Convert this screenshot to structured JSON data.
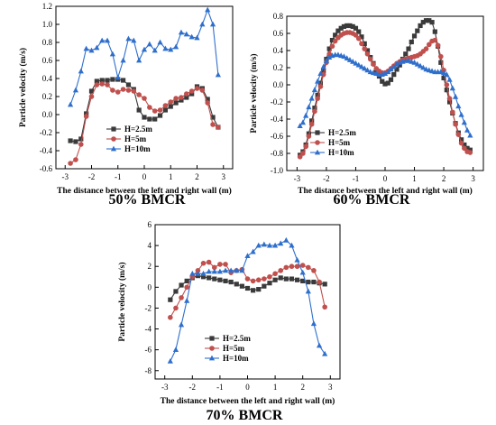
{
  "chart_data": [
    {
      "type": "line",
      "caption": "50% BMCR",
      "xlabel": "The distance between the left and right wall (m)",
      "ylabel": "Particle velocity (m/s)",
      "xlim": [
        -3.35,
        3.35
      ],
      "ylim": [
        -0.6,
        1.2
      ],
      "xticks": [
        -3,
        -2,
        -1,
        0,
        1,
        2,
        3
      ],
      "yticks": [
        -0.6,
        -0.4,
        -0.2,
        0.0,
        0.2,
        0.4,
        0.6,
        0.8,
        1.0,
        1.2
      ],
      "ytick_labels": [
        "-0.6",
        "-0.4",
        "-0.2",
        "0.0",
        "0.2",
        "0.4",
        "0.6",
        "0.8",
        "1.0",
        "1.2"
      ],
      "grid": false,
      "legend_position": "center-right",
      "x": [
        -2.8,
        -2.6,
        -2.4,
        -2.2,
        -2.0,
        -1.8,
        -1.6,
        -1.4,
        -1.2,
        -1.0,
        -0.8,
        -0.6,
        -0.4,
        -0.2,
        0.0,
        0.2,
        0.4,
        0.6,
        0.8,
        1.0,
        1.2,
        1.4,
        1.6,
        1.8,
        2.0,
        2.2,
        2.4,
        2.6,
        2.8
      ],
      "series": [
        {
          "name": "H=2.5m",
          "color": "#3a3a3a",
          "marker": "square",
          "values": [
            -0.29,
            -0.3,
            -0.27,
            0.01,
            0.26,
            0.37,
            0.38,
            0.38,
            0.39,
            0.39,
            0.38,
            0.33,
            0.28,
            0.05,
            -0.03,
            -0.05,
            -0.05,
            -0.01,
            0.05,
            0.09,
            0.13,
            0.16,
            0.19,
            0.23,
            0.31,
            0.29,
            0.17,
            -0.03,
            -0.14
          ]
        },
        {
          "name": "H=5m",
          "color": "#c0504d",
          "marker": "circle",
          "values": [
            -0.54,
            -0.5,
            -0.33,
            -0.02,
            0.2,
            0.33,
            0.34,
            0.33,
            0.27,
            0.25,
            0.28,
            0.27,
            0.26,
            0.22,
            0.18,
            0.08,
            0.04,
            0.05,
            0.1,
            0.14,
            0.18,
            0.19,
            0.23,
            0.26,
            0.29,
            0.27,
            0.13,
            -0.11,
            -0.14
          ]
        },
        {
          "name": "H=10m",
          "color": "#2f6fcc",
          "marker": "triangle",
          "values": [
            0.11,
            0.27,
            0.48,
            0.73,
            0.71,
            0.74,
            0.82,
            0.82,
            0.67,
            0.41,
            0.6,
            0.84,
            0.82,
            0.6,
            0.72,
            0.78,
            0.71,
            0.8,
            0.73,
            0.72,
            0.75,
            0.91,
            0.89,
            0.86,
            0.85,
            1.0,
            1.16,
            1.0,
            0.44
          ]
        }
      ]
    },
    {
      "type": "line",
      "caption": "60% BMCR",
      "xlabel": "The distance between the left and right wall (m)",
      "ylabel": "Particle velocity (m/s)",
      "xlim": [
        -3.35,
        3.35
      ],
      "ylim": [
        -1.0,
        0.8
      ],
      "xticks": [
        -3,
        -2,
        -1,
        0,
        1,
        2,
        3
      ],
      "yticks": [
        -1.0,
        -0.8,
        -0.6,
        -0.4,
        -0.2,
        0.0,
        0.2,
        0.4,
        0.6,
        0.8
      ],
      "ytick_labels": [
        "-1.0",
        "-0.8",
        "-0.6",
        "-0.4",
        "-0.2",
        "0.0",
        "0.2",
        "0.4",
        "0.6",
        "0.8"
      ],
      "grid": false,
      "legend_position": "bottom-left",
      "x": [
        -2.9,
        -2.8,
        -2.7,
        -2.6,
        -2.5,
        -2.4,
        -2.3,
        -2.2,
        -2.1,
        -2.0,
        -1.9,
        -1.8,
        -1.7,
        -1.6,
        -1.5,
        -1.4,
        -1.3,
        -1.2,
        -1.1,
        -1.0,
        -0.9,
        -0.8,
        -0.7,
        -0.6,
        -0.5,
        -0.4,
        -0.3,
        -0.2,
        -0.1,
        0.0,
        0.1,
        0.2,
        0.3,
        0.4,
        0.5,
        0.6,
        0.7,
        0.8,
        0.9,
        1.0,
        1.1,
        1.2,
        1.3,
        1.4,
        1.5,
        1.6,
        1.7,
        1.8,
        1.9,
        2.0,
        2.1,
        2.2,
        2.3,
        2.4,
        2.5,
        2.6,
        2.7,
        2.8,
        2.9
      ],
      "series": [
        {
          "name": "H=2.5m",
          "color": "#3a3a3a",
          "marker": "square",
          "values": [
            -0.82,
            -0.78,
            -0.7,
            -0.57,
            -0.42,
            -0.27,
            -0.12,
            0.02,
            0.16,
            0.3,
            0.42,
            0.52,
            0.58,
            0.63,
            0.66,
            0.68,
            0.69,
            0.69,
            0.68,
            0.66,
            0.62,
            0.56,
            0.48,
            0.4,
            0.32,
            0.25,
            0.17,
            0.1,
            0.04,
            0.01,
            0.02,
            0.06,
            0.12,
            0.18,
            0.23,
            0.3,
            0.36,
            0.42,
            0.5,
            0.57,
            0.63,
            0.69,
            0.73,
            0.75,
            0.75,
            0.73,
            0.62,
            0.45,
            0.26,
            0.08,
            -0.06,
            -0.2,
            -0.33,
            -0.45,
            -0.56,
            -0.64,
            -0.7,
            -0.74,
            -0.76
          ]
        },
        {
          "name": "H=5m",
          "color": "#c0504d",
          "marker": "circle",
          "values": [
            -0.84,
            -0.8,
            -0.72,
            -0.6,
            -0.46,
            -0.31,
            -0.16,
            -0.02,
            0.12,
            0.26,
            0.36,
            0.45,
            0.51,
            0.55,
            0.58,
            0.6,
            0.61,
            0.61,
            0.6,
            0.58,
            0.54,
            0.48,
            0.42,
            0.36,
            0.3,
            0.24,
            0.19,
            0.16,
            0.14,
            0.14,
            0.16,
            0.19,
            0.22,
            0.25,
            0.27,
            0.29,
            0.3,
            0.31,
            0.32,
            0.33,
            0.34,
            0.36,
            0.39,
            0.42,
            0.47,
            0.51,
            0.52,
            0.46,
            0.33,
            0.17,
            0.0,
            -0.16,
            -0.32,
            -0.46,
            -0.58,
            -0.68,
            -0.74,
            -0.78,
            -0.79
          ]
        },
        {
          "name": "H=10m",
          "color": "#2f6fcc",
          "marker": "triangle",
          "values": [
            -0.48,
            -0.44,
            -0.36,
            -0.26,
            -0.16,
            -0.06,
            0.04,
            0.13,
            0.21,
            0.28,
            0.32,
            0.34,
            0.35,
            0.35,
            0.34,
            0.33,
            0.31,
            0.29,
            0.27,
            0.25,
            0.23,
            0.21,
            0.19,
            0.17,
            0.15,
            0.14,
            0.13,
            0.12,
            0.12,
            0.13,
            0.15,
            0.18,
            0.21,
            0.24,
            0.26,
            0.27,
            0.28,
            0.28,
            0.27,
            0.26,
            0.24,
            0.22,
            0.2,
            0.18,
            0.17,
            0.16,
            0.15,
            0.15,
            0.15,
            0.14,
            0.12,
            0.06,
            -0.04,
            -0.14,
            -0.25,
            -0.35,
            -0.44,
            -0.53,
            -0.59
          ]
        }
      ]
    },
    {
      "type": "line",
      "caption": "70% BMCR",
      "xlabel": "The distance between the left and right wall (m)",
      "ylabel": "Particle velocity (m/s)",
      "xlim": [
        -3.35,
        3.35
      ],
      "ylim": [
        -8.8,
        6.0
      ],
      "xticks": [
        -3,
        -2,
        -1,
        0,
        1,
        2,
        3
      ],
      "yticks": [
        -8,
        -6,
        -4,
        -2,
        0,
        2,
        4,
        6
      ],
      "ytick_labels": [
        "-8",
        "-6",
        "-4",
        "-2",
        "0",
        "2",
        "4",
        "6"
      ],
      "grid": false,
      "legend_position": "bottom-center",
      "x": [
        -2.8,
        -2.6,
        -2.4,
        -2.2,
        -2.0,
        -1.8,
        -1.6,
        -1.4,
        -1.2,
        -1.0,
        -0.8,
        -0.6,
        -0.4,
        -0.2,
        0.0,
        0.2,
        0.4,
        0.6,
        0.8,
        1.0,
        1.2,
        1.4,
        1.6,
        1.8,
        2.0,
        2.2,
        2.4,
        2.6,
        2.8
      ],
      "series": [
        {
          "name": "H=2.5m",
          "color": "#3a3a3a",
          "marker": "square",
          "values": [
            -1.2,
            -0.4,
            0.2,
            0.6,
            0.9,
            1.1,
            1.0,
            0.9,
            0.8,
            0.7,
            0.6,
            0.5,
            0.3,
            0.1,
            -0.1,
            -0.3,
            -0.2,
            0.1,
            0.4,
            0.7,
            0.9,
            0.8,
            0.8,
            0.7,
            0.6,
            0.5,
            0.5,
            0.4,
            0.3
          ]
        },
        {
          "name": "H=5m",
          "color": "#c0504d",
          "marker": "circle",
          "values": [
            -2.9,
            -2.0,
            -1.0,
            0.0,
            1.0,
            1.6,
            2.3,
            2.4,
            1.9,
            2.2,
            2.2,
            1.4,
            1.6,
            1.7,
            0.8,
            0.6,
            0.7,
            0.8,
            1.0,
            1.3,
            1.6,
            1.9,
            2.0,
            2.0,
            2.1,
            1.9,
            1.6,
            0.5,
            -1.9
          ]
        },
        {
          "name": "H=10m",
          "color": "#2f6fcc",
          "marker": "triangle",
          "values": [
            -7.1,
            -6.0,
            -3.6,
            -1.3,
            1.3,
            1.3,
            1.3,
            1.5,
            1.5,
            1.5,
            1.6,
            1.6,
            1.6,
            1.6,
            3.0,
            3.4,
            4.0,
            4.1,
            4.0,
            4.0,
            4.2,
            4.5,
            4.0,
            2.6,
            1.4,
            -0.4,
            -3.5,
            -5.6,
            -6.4
          ]
        }
      ]
    }
  ]
}
